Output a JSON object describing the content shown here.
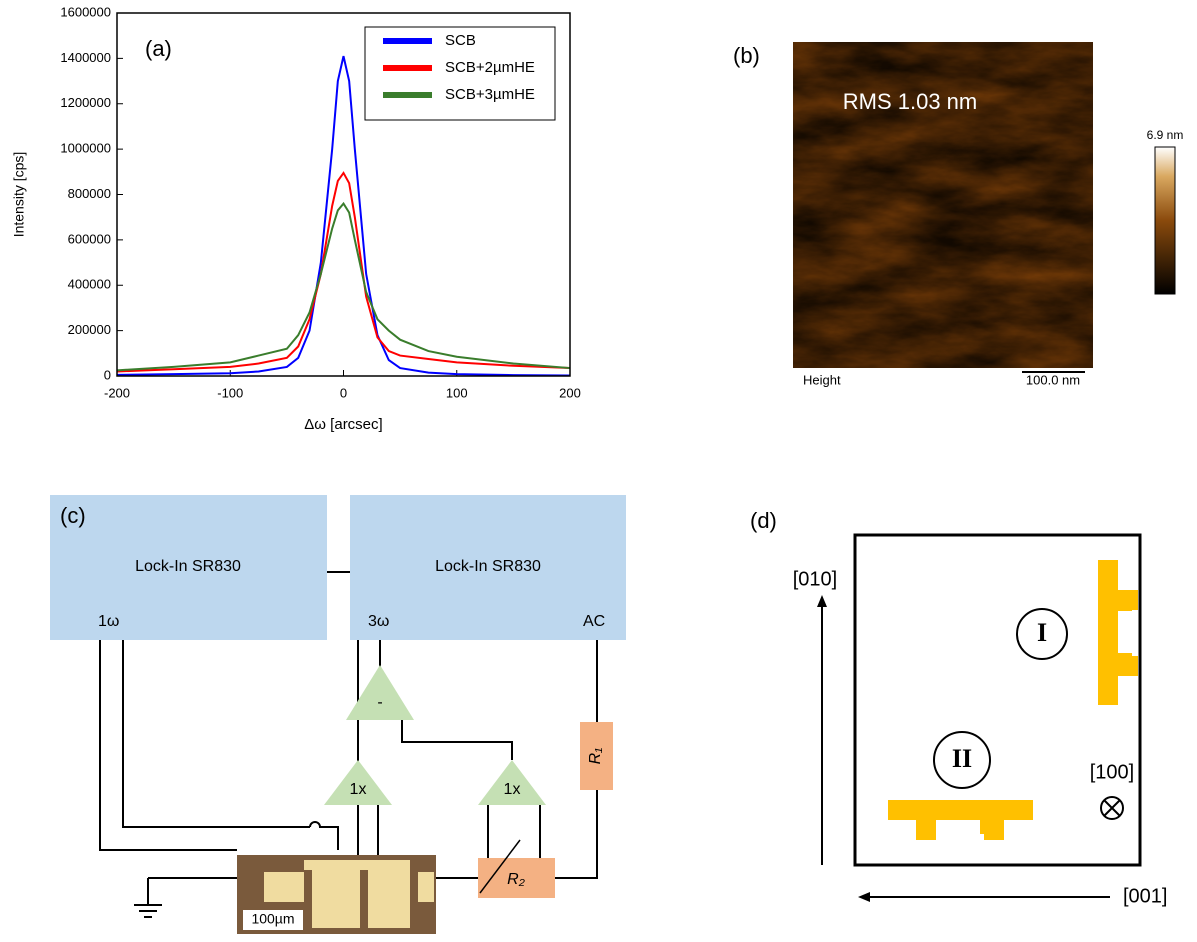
{
  "chart_data": {
    "type": "line",
    "panel_label": "(a)",
    "x_label": "Δω [arcsec]",
    "y_label": "Intensity [cps]",
    "x": [
      -200,
      -150,
      -100,
      -75,
      -50,
      -40,
      -30,
      -20,
      -10,
      -5,
      0,
      5,
      10,
      20,
      30,
      40,
      50,
      75,
      100,
      150,
      200
    ],
    "series": [
      {
        "name": "SCB",
        "color": "#0000ff",
        "values": [
          5000,
          8000,
          12000,
          20000,
          40000,
          80000,
          200000,
          500000,
          1000000,
          1300000,
          1410000,
          1300000,
          1000000,
          450000,
          180000,
          70000,
          35000,
          15000,
          8000,
          4000,
          2000
        ]
      },
      {
        "name": "SCB+2µmHE",
        "color": "#ff0000",
        "values": [
          20000,
          30000,
          40000,
          55000,
          80000,
          130000,
          250000,
          450000,
          750000,
          860000,
          895000,
          850000,
          700000,
          350000,
          170000,
          110000,
          90000,
          75000,
          60000,
          45000,
          35000
        ]
      },
      {
        "name": "SCB+3µmHE",
        "color": "#3a7d2c",
        "values": [
          25000,
          40000,
          60000,
          90000,
          120000,
          180000,
          280000,
          450000,
          650000,
          730000,
          760000,
          720000,
          600000,
          370000,
          250000,
          200000,
          160000,
          110000,
          85000,
          55000,
          35000
        ]
      }
    ],
    "xlim": [
      -200,
      200
    ],
    "xticks": [
      -200,
      -100,
      0,
      100,
      200
    ],
    "ylim": [
      0,
      1600000
    ],
    "yticks": [
      0,
      200000,
      400000,
      600000,
      800000,
      1000000,
      1200000,
      1400000,
      1600000
    ],
    "legend": "upper right"
  },
  "afm": {
    "panel_label": "(b)",
    "rms": "RMS 1.03 nm",
    "scale_max": "6.9 nm",
    "channel": "Height",
    "scale_bar": "100.0 nm"
  },
  "circuit": {
    "panel_label": "(c)",
    "lockin_left": "Lock-In SR830",
    "lockin_right": "Lock-In SR830",
    "port_1w": "1ω",
    "port_3w": "3ω",
    "port_ac": "AC",
    "diff_amp": "-",
    "buffer_left": "1x",
    "buffer_right": "1x",
    "r1": "R₁",
    "r2": "R₂",
    "micro_scale": "100µm"
  },
  "schematic": {
    "panel_label": "(d)",
    "axis_vertical": "[010]",
    "axis_horizontal": "[001]",
    "axis_out": "[100]",
    "sample_1": "I",
    "sample_2": "II"
  }
}
